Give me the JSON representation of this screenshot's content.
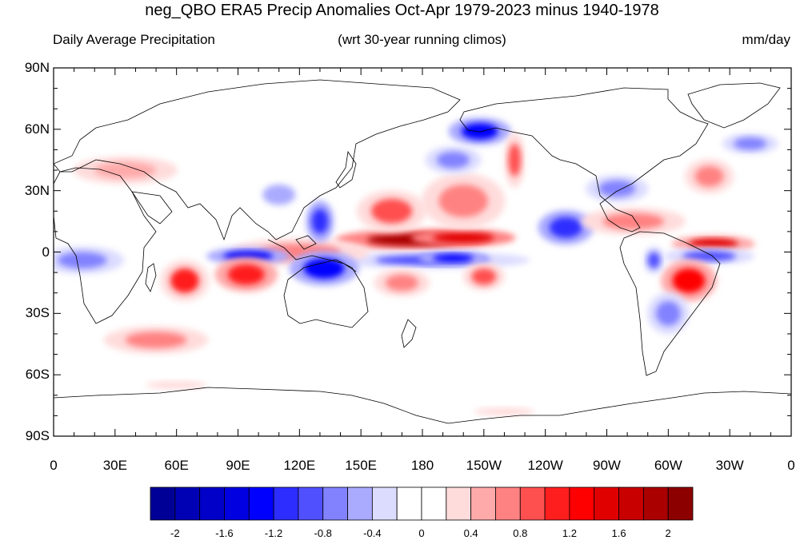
{
  "title": "neg_QBO ERA5 Precip Anomalies Oct-Apr 1979-2023 minus 1940-1978",
  "subtitle_left": "Daily Average Precipitation",
  "subtitle_center": "(wrt 30-year running climos)",
  "subtitle_right": "mm/day",
  "lat_labels": [
    "90N",
    "60N",
    "30N",
    "0",
    "30S",
    "60S",
    "90S"
  ],
  "lon_labels": [
    "0",
    "30E",
    "60E",
    "90E",
    "120E",
    "150E",
    "180",
    "150W",
    "120W",
    "90W",
    "60W",
    "30W",
    "0"
  ],
  "colorbar": {
    "colors": [
      "#000096",
      "#0000b4",
      "#0000c8",
      "#0000e1",
      "#0000ff",
      "#2d2dff",
      "#5050ff",
      "#8282ff",
      "#aaaaff",
      "#dcdcff",
      "#ffffff",
      "#ffffff",
      "#ffdcdc",
      "#ffaaaa",
      "#ff8282",
      "#ff5050",
      "#ff1e1e",
      "#ff0000",
      "#e10000",
      "#c80000",
      "#aa0000",
      "#8c0000"
    ],
    "labels": [
      "-2",
      "-1.6",
      "-1.2",
      "-0.8",
      "-0.4",
      "0",
      "0.4",
      "0.8",
      "1.2",
      "1.6",
      "2"
    ]
  },
  "anomalies": [
    {
      "lon": 175,
      "lat": 6,
      "rx": 22,
      "ry": 3,
      "value": 1.9
    },
    {
      "lon": 200,
      "lat": 7,
      "rx": 15,
      "ry": 2.5,
      "value": 1.5
    },
    {
      "lon": 165,
      "lat": 20,
      "rx": 10,
      "ry": 6,
      "value": 0.9
    },
    {
      "lon": 200,
      "lat": 25,
      "rx": 12,
      "ry": 8,
      "value": 0.8
    },
    {
      "lon": 185,
      "lat": -4,
      "rx": 28,
      "ry": 2.5,
      "value": -1.0
    },
    {
      "lon": 195,
      "lat": -3,
      "rx": 10,
      "ry": 2,
      "value": -1.4
    },
    {
      "lon": 120,
      "lat": 0,
      "rx": 20,
      "ry": 4,
      "value": 0.6
    },
    {
      "lon": 95,
      "lat": -2,
      "rx": 12,
      "ry": 2.5,
      "value": -1.3
    },
    {
      "lon": 132,
      "lat": -8,
      "rx": 10,
      "ry": 5,
      "value": -1.4
    },
    {
      "lon": 130,
      "lat": 15,
      "rx": 4,
      "ry": 6,
      "value": -1.2
    },
    {
      "lon": 64,
      "lat": -14,
      "rx": 7,
      "ry": 6,
      "value": 1.0
    },
    {
      "lon": 94,
      "lat": -11,
      "rx": 9,
      "ry": 5,
      "value": 1.1
    },
    {
      "lon": 14,
      "lat": -4,
      "rx": 12,
      "ry": 4,
      "value": -0.6
    },
    {
      "lon": 208,
      "lat": 59,
      "rx": 9,
      "ry": 4,
      "value": -1.3
    },
    {
      "lon": 225,
      "lat": 45,
      "rx": 3,
      "ry": 8,
      "value": 0.9
    },
    {
      "lon": 195,
      "lat": 45,
      "rx": 8,
      "ry": 4,
      "value": -0.6
    },
    {
      "lon": 250,
      "lat": 12,
      "rx": 8,
      "ry": 5,
      "value": -1.1
    },
    {
      "lon": 322,
      "lat": 4,
      "rx": 12,
      "ry": 2.5,
      "value": 1.4
    },
    {
      "lon": 320,
      "lat": -2,
      "rx": 13,
      "ry": 2.5,
      "value": -1.0
    },
    {
      "lon": 310,
      "lat": -14,
      "rx": 8,
      "ry": 6,
      "value": 1.3
    },
    {
      "lon": 293,
      "lat": -4,
      "rx": 3,
      "ry": 4,
      "value": -1.0
    },
    {
      "lon": 320,
      "lat": 37,
      "rx": 7,
      "ry": 5,
      "value": 0.8
    },
    {
      "lon": 283,
      "lat": 15,
      "rx": 15,
      "ry": 4,
      "value": 0.6
    },
    {
      "lon": 300,
      "lat": -30,
      "rx": 6,
      "ry": 6,
      "value": -0.6
    },
    {
      "lon": 210,
      "lat": -12,
      "rx": 6,
      "ry": 4,
      "value": 0.9
    },
    {
      "lon": 170,
      "lat": -15,
      "rx": 8,
      "ry": 4,
      "value": 0.6
    },
    {
      "lon": 50,
      "lat": -43,
      "rx": 15,
      "ry": 4,
      "value": 0.6
    },
    {
      "lon": 60,
      "lat": -65,
      "rx": 15,
      "ry": 2,
      "value": 0.4
    },
    {
      "lon": 220,
      "lat": -78,
      "rx": 15,
      "ry": 2,
      "value": 0.4
    },
    {
      "lon": 275,
      "lat": 31,
      "rx": 9,
      "ry": 4,
      "value": -0.6
    },
    {
      "lon": 340,
      "lat": 53,
      "rx": 8,
      "ry": 3,
      "value": -0.6
    },
    {
      "lon": 35,
      "lat": 40,
      "rx": 15,
      "ry": 4,
      "value": 0.5
    },
    {
      "lon": 110,
      "lat": 28,
      "rx": 8,
      "ry": 5,
      "value": -0.5
    }
  ]
}
